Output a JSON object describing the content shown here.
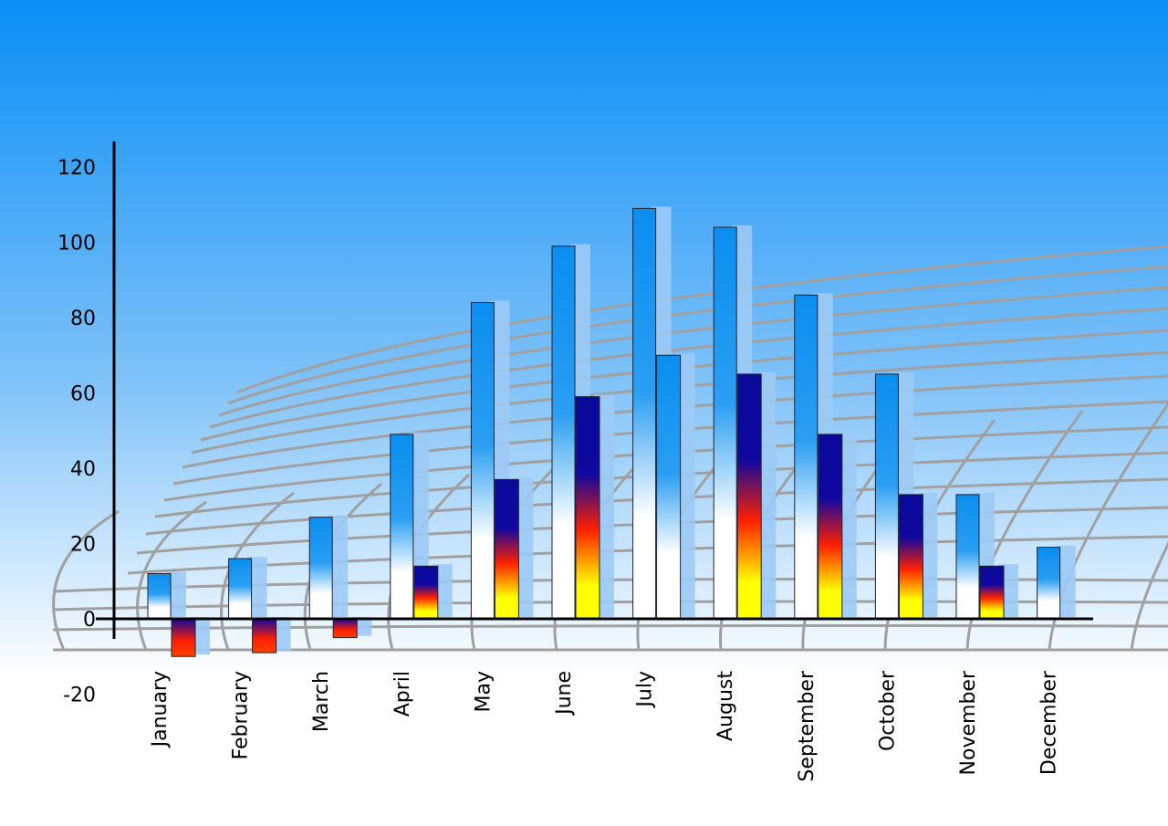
{
  "chart_data": {
    "type": "bar",
    "title": "",
    "xlabel": "",
    "ylabel": "",
    "categories": [
      "January",
      "February",
      "March",
      "April",
      "May",
      "June",
      "July",
      "August",
      "September",
      "October",
      "November",
      "December"
    ],
    "series": [
      {
        "values": [
          12,
          16,
          27,
          49,
          84,
          99,
          109,
          104,
          86,
          65,
          33,
          19
        ]
      },
      {
        "values": [
          -10,
          -9,
          -5,
          14,
          37,
          59,
          70,
          65,
          49,
          33,
          14,
          null
        ]
      }
    ],
    "ylim": [
      -20,
      120
    ],
    "yticks": [
      "120",
      "100",
      "80",
      "60",
      "40",
      "20",
      "0",
      "-20"
    ],
    "ytick_values": [
      120,
      100,
      80,
      60,
      40,
      20,
      0,
      -20
    ],
    "grid": false,
    "colors": {
      "series1_top": "#0a8ef0",
      "series1_bottom": "#ffffff",
      "series2_top": "#0a0a9a",
      "series2_mid": "#ff2000",
      "series2_bottom": "#ffff00",
      "shadow": "#9ccaf5",
      "background_top": "#0a8ef5",
      "floor_grid": "#a0a0a0"
    }
  }
}
